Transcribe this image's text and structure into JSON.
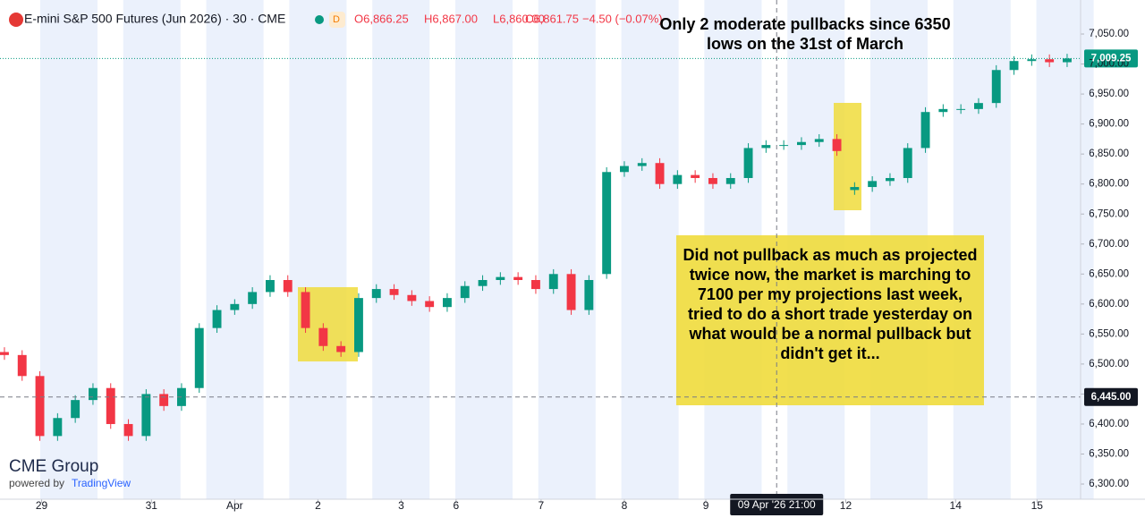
{
  "header": {
    "symbol": "E-mini S&P 500 Futures (Jun 2026) · 30 · CME",
    "open": "O6,866.25",
    "high": "H6,867.00",
    "low": "L6,860.00",
    "close": "C6,861.75",
    "change": "−4.50 (−0.07%)"
  },
  "branding": {
    "logo": "CME Group",
    "powered": "powered by",
    "platform": "TradingView"
  },
  "chart_data": {
    "type": "candlestick",
    "annotations": [
      "Only 2 moderate pullbacks since 6350 lows on the 31st of March",
      "Did not pullback as much as projected twice now, the market is marching to 7100 per my projections last week, tried to do a short trade yesterday on what would be a normal pullback but didn't get it..."
    ],
    "x": [
      0,
      1,
      2,
      3,
      4,
      5,
      6,
      7,
      8,
      9,
      10,
      11,
      12,
      13,
      14,
      15,
      16,
      17,
      18,
      19,
      20,
      21,
      22,
      23,
      24,
      25,
      26,
      27,
      28,
      29,
      30,
      31,
      32,
      33,
      34,
      35,
      36,
      37,
      38,
      39,
      40,
      41,
      42,
      43,
      44,
      45,
      46,
      47,
      48,
      49,
      50,
      51,
      52,
      53,
      54,
      55,
      56,
      57,
      58,
      59,
      60
    ],
    "open": [
      6520,
      6515,
      6480,
      6380,
      6410,
      6440,
      6460,
      6400,
      6380,
      6450,
      6430,
      6460,
      6560,
      6590,
      6600,
      6620,
      6640,
      6620,
      6560,
      6530,
      6520,
      6610,
      6625,
      6615,
      6605,
      6595,
      6610,
      6630,
      6640,
      6645,
      6640,
      6625,
      6650,
      6590,
      6650,
      6820,
      6830,
      6835,
      6800,
      6815,
      6810,
      6800,
      6810,
      6860,
      6865,
      6865,
      6870,
      6875,
      6790,
      6795,
      6805,
      6810,
      6860,
      6920,
      6925,
      6925,
      6935,
      6990,
      7005,
      7008,
      7003
    ],
    "high": [
      6528,
      6523,
      6488,
      6418,
      6448,
      6468,
      6468,
      6408,
      6458,
      6458,
      6468,
      6568,
      6598,
      6608,
      6628,
      6648,
      6648,
      6628,
      6568,
      6538,
      6618,
      6633,
      6633,
      6623,
      6613,
      6618,
      6638,
      6648,
      6653,
      6653,
      6648,
      6658,
      6658,
      6648,
      6828,
      6838,
      6843,
      6843,
      6823,
      6823,
      6818,
      6818,
      6868,
      6873,
      6873,
      6878,
      6883,
      6883,
      6803,
      6813,
      6818,
      6868,
      6928,
      6933,
      6933,
      6943,
      6998,
      7013,
      7016,
      7016,
      7017
    ],
    "low": [
      6507,
      6472,
      6372,
      6372,
      6402,
      6432,
      6392,
      6372,
      6372,
      6422,
      6422,
      6452,
      6552,
      6582,
      6592,
      6612,
      6612,
      6552,
      6522,
      6512,
      6512,
      6602,
      6607,
      6597,
      6587,
      6587,
      6602,
      6622,
      6632,
      6632,
      6617,
      6617,
      6582,
      6582,
      6642,
      6812,
      6822,
      6792,
      6792,
      6802,
      6792,
      6792,
      6802,
      6852,
      6857,
      6857,
      6862,
      6847,
      6782,
      6787,
      6797,
      6802,
      6852,
      6912,
      6917,
      6917,
      6927,
      6982,
      6997,
      6995,
      6995
    ],
    "close": [
      6515,
      6480,
      6380,
      6410,
      6440,
      6460,
      6400,
      6380,
      6450,
      6430,
      6460,
      6560,
      6590,
      6600,
      6620,
      6640,
      6620,
      6560,
      6530,
      6520,
      6610,
      6625,
      6615,
      6605,
      6595,
      6610,
      6630,
      6640,
      6645,
      6640,
      6625,
      6650,
      6590,
      6640,
      6820,
      6830,
      6835,
      6800,
      6815,
      6810,
      6800,
      6810,
      6860,
      6865,
      6865,
      6870,
      6875,
      6855,
      6795,
      6805,
      6810,
      6860,
      6920,
      6925,
      6925,
      6935,
      6990,
      7005,
      7008,
      7003,
      7009.25
    ],
    "up_color": "#089981",
    "down_color": "#f23645",
    "xlim": [
      -0.25,
      60.76
    ],
    "ylim": [
      6274.7,
      7106.7
    ],
    "xticks": [
      {
        "value": 2.1,
        "label": "29"
      },
      {
        "value": 8.3,
        "label": "31"
      },
      {
        "value": 13,
        "label": "Apr"
      },
      {
        "value": 17.7,
        "label": "2"
      },
      {
        "value": 22.4,
        "label": "3"
      },
      {
        "value": 25.5,
        "label": "6"
      },
      {
        "value": 30.3,
        "label": "7"
      },
      {
        "value": 35,
        "label": "8"
      },
      {
        "value": 39.6,
        "label": "9"
      },
      {
        "value": 47.5,
        "label": "12"
      },
      {
        "value": 53.7,
        "label": "14"
      },
      {
        "value": 58.3,
        "label": "15"
      }
    ],
    "yticks": [
      {
        "value": 6300,
        "label": "6,300.00"
      },
      {
        "value": 6350,
        "label": "6,350.00"
      },
      {
        "value": 6400,
        "label": "6,400.00"
      },
      {
        "value": 6450,
        "label": "6,450.00"
      },
      {
        "value": 6500,
        "label": "6,500.00"
      },
      {
        "value": 6550,
        "label": "6,550.00"
      },
      {
        "value": 6600,
        "label": "6,600.00"
      },
      {
        "value": 6650,
        "label": "6,650.00"
      },
      {
        "value": 6700,
        "label": "6,700.00"
      },
      {
        "value": 6750,
        "label": "6,750.00"
      },
      {
        "value": 6800,
        "label": "6,800.00"
      },
      {
        "value": 6850,
        "label": "6,850.00"
      },
      {
        "value": 6900,
        "label": "6,900.00"
      },
      {
        "value": 6950,
        "label": "6,950.00"
      },
      {
        "value": 7000,
        "label": "7,000.00"
      },
      {
        "value": 7050,
        "label": "7,050.00"
      }
    ],
    "last_price": {
      "value": 7009.25,
      "label": "7,009.25"
    },
    "crosshair": {
      "x": 43.6,
      "x_label": "09 Apr '26 21:00",
      "y": 6445,
      "y_label": "6,445.00"
    }
  }
}
